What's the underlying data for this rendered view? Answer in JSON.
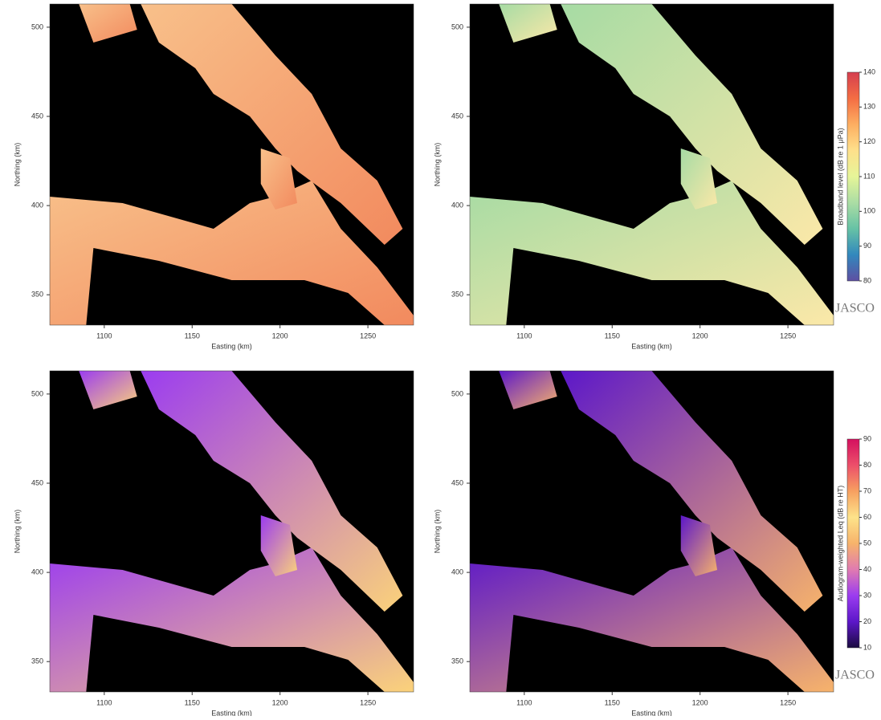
{
  "chart_data": [
    {
      "type": "heatmap",
      "xlabel": "Easting (km)",
      "ylabel": "Northing (km)",
      "xlim": [
        1069,
        1276
      ],
      "ylim": [
        333,
        513
      ],
      "xticks": [
        1100,
        1150,
        1200,
        1250
      ],
      "yticks": [
        350,
        400,
        450,
        500
      ],
      "water_colors": [
        "#f8c08a",
        "#f28a5e"
      ]
    },
    {
      "type": "heatmap",
      "xlabel": "Easting (km)",
      "ylabel": "Northing (km)",
      "xlim": [
        1069,
        1276
      ],
      "ylim": [
        333,
        513
      ],
      "xticks": [
        1100,
        1150,
        1200,
        1250
      ],
      "yticks": [
        350,
        400,
        450,
        500
      ],
      "water_colors": [
        "#a6dba4",
        "#fbe8a8"
      ],
      "colorbar": {
        "label": "Broadband level (dB re 1 μPa)",
        "lim": [
          80,
          140
        ],
        "ticks": [
          80,
          90,
          100,
          110,
          120,
          130,
          140
        ],
        "colormap": [
          "#5e4fa2",
          "#3288bd",
          "#66c2a5",
          "#abdda4",
          "#e6f598",
          "#fee08b",
          "#fdae61",
          "#f46d43",
          "#d53e4f"
        ]
      }
    },
    {
      "type": "heatmap",
      "xlabel": "Easting (km)",
      "ylabel": "Northing (km)",
      "xlim": [
        1069,
        1276
      ],
      "ylim": [
        333,
        513
      ],
      "xticks": [
        1100,
        1150,
        1200,
        1250
      ],
      "yticks": [
        350,
        400,
        450,
        500
      ],
      "water_colors": [
        "#9b3cf0",
        "#fbd27a"
      ]
    },
    {
      "type": "heatmap",
      "xlabel": "Easting (km)",
      "ylabel": "Northing (km)",
      "xlim": [
        1069,
        1276
      ],
      "ylim": [
        333,
        513
      ],
      "xticks": [
        1100,
        1150,
        1200,
        1250
      ],
      "yticks": [
        350,
        400,
        450,
        500
      ],
      "water_colors": [
        "#5c17c9",
        "#f7b36b"
      ],
      "colorbar": {
        "label": "Audiogram-weighted Leq (dB re HT)",
        "lim": [
          10,
          90
        ],
        "ticks": [
          10,
          20,
          30,
          40,
          50,
          60,
          70,
          80,
          90
        ],
        "colormap": [
          "#1a0b40",
          "#5c17c9",
          "#9b3cf0",
          "#e07bb0",
          "#f7b36b",
          "#fde38a",
          "#f7a060",
          "#ec4f6a",
          "#d4105f"
        ]
      }
    }
  ],
  "logos": [
    "JASCO",
    "JASCO"
  ]
}
